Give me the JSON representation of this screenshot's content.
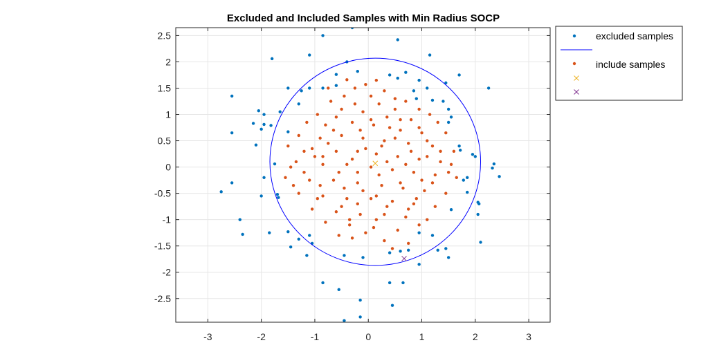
{
  "chart_data": {
    "type": "scatter",
    "title": "Excluded and Included Samples with Min Radius SOCP",
    "xlabel": "",
    "ylabel": "",
    "xlim": [
      -3.6,
      3.4
    ],
    "ylim": [
      -2.95,
      2.65
    ],
    "xticks": [
      -3,
      -2,
      -1,
      0,
      1,
      2,
      3
    ],
    "yticks": [
      2.5,
      2,
      1.5,
      1,
      0.5,
      0,
      -0.5,
      -1,
      -1.5,
      -2,
      -2.5
    ],
    "grid": true,
    "legend_position": "outside-top-right",
    "colors": {
      "excluded": "#0072BD",
      "circle": "#0000FF",
      "included": "#D95319",
      "center": "#EDB120",
      "boundary": "#7E2F8E",
      "grid": "#e6e6e6",
      "axes": "#262626"
    },
    "circle": {
      "center": [
        0.13,
        0.1
      ],
      "radius": 1.97
    },
    "center_marker": [
      0.13,
      0.07
    ],
    "boundary_marker": [
      0.67,
      -1.74
    ],
    "excluded_points": [
      [
        -0.3,
        2.65
      ],
      [
        -0.85,
        2.5
      ],
      [
        0.55,
        2.42
      ],
      [
        -1.1,
        2.13
      ],
      [
        1.15,
        2.13
      ],
      [
        -1.8,
        2.06
      ],
      [
        -0.4,
        2.0
      ],
      [
        -0.6,
        1.76
      ],
      [
        -0.2,
        1.82
      ],
      [
        0.4,
        1.75
      ],
      [
        0.55,
        1.69
      ],
      [
        0.7,
        1.8
      ],
      [
        0.95,
        1.65
      ],
      [
        1.7,
        1.75
      ],
      [
        1.45,
        1.6
      ],
      [
        -1.5,
        1.5
      ],
      [
        -1.1,
        1.5
      ],
      [
        -0.85,
        1.5
      ],
      [
        -1.25,
        1.45
      ],
      [
        -0.6,
        1.55
      ],
      [
        0.85,
        1.45
      ],
      [
        1.1,
        1.5
      ],
      [
        0.9,
        1.3
      ],
      [
        2.25,
        1.5
      ],
      [
        -2.55,
        1.35
      ],
      [
        -1.3,
        1.2
      ],
      [
        1.2,
        1.27
      ],
      [
        1.4,
        1.25
      ],
      [
        -2.05,
        1.07
      ],
      [
        -1.95,
        1.0
      ],
      [
        -1.65,
        1.05
      ],
      [
        -2.15,
        0.83
      ],
      [
        -1.95,
        0.81
      ],
      [
        -1.82,
        0.79
      ],
      [
        1.5,
        1.1
      ],
      [
        1.55,
        0.95
      ],
      [
        1.5,
        0.85
      ],
      [
        -2.55,
        0.65
      ],
      [
        -2.0,
        0.72
      ],
      [
        -1.5,
        0.67
      ],
      [
        -2.1,
        0.42
      ],
      [
        1.7,
        0.4
      ],
      [
        1.72,
        0.32
      ],
      [
        1.95,
        0.24
      ],
      [
        2.0,
        0.2
      ],
      [
        -1.75,
        0.06
      ],
      [
        2.35,
        0.06
      ],
      [
        2.32,
        -0.02
      ],
      [
        -1.95,
        -0.2
      ],
      [
        2.45,
        -0.18
      ],
      [
        -2.55,
        -0.3
      ],
      [
        1.78,
        -0.25
      ],
      [
        1.85,
        -0.2
      ],
      [
        -2.75,
        -0.47
      ],
      [
        -1.7,
        -0.52
      ],
      [
        -1.68,
        -0.58
      ],
      [
        -2.0,
        -0.55
      ],
      [
        1.85,
        -0.48
      ],
      [
        2.05,
        -0.67
      ],
      [
        2.07,
        -0.7
      ],
      [
        1.55,
        -0.81
      ],
      [
        2.05,
        -0.9
      ],
      [
        -2.4,
        -1.0
      ],
      [
        -1.85,
        -1.25
      ],
      [
        -2.35,
        -1.28
      ],
      [
        -1.5,
        -1.23
      ],
      [
        -1.1,
        -1.3
      ],
      [
        0.95,
        -1.25
      ],
      [
        1.2,
        -1.3
      ],
      [
        -1.3,
        -1.37
      ],
      [
        -1.05,
        -1.45
      ],
      [
        2.1,
        -1.43
      ],
      [
        -1.45,
        -1.52
      ],
      [
        0.6,
        -1.6
      ],
      [
        1.45,
        -1.55
      ],
      [
        1.3,
        -1.58
      ],
      [
        0.75,
        -1.58
      ],
      [
        0.4,
        -1.63
      ],
      [
        -1.15,
        -1.68
      ],
      [
        -0.45,
        -1.68
      ],
      [
        -0.1,
        -1.72
      ],
      [
        1.5,
        -1.72
      ],
      [
        0.95,
        -1.85
      ],
      [
        0.4,
        -2.2
      ],
      [
        0.65,
        -2.2
      ],
      [
        -0.85,
        -2.2
      ],
      [
        -0.55,
        -2.33
      ],
      [
        -0.15,
        -2.53
      ],
      [
        0.45,
        -2.63
      ],
      [
        -0.15,
        -2.85
      ],
      [
        -0.45,
        -2.92
      ]
    ],
    "included_points": [
      [
        -0.4,
        1.66
      ],
      [
        -0.25,
        1.5
      ],
      [
        -0.05,
        1.57
      ],
      [
        0.15,
        1.65
      ],
      [
        -0.75,
        1.5
      ],
      [
        0.3,
        1.45
      ],
      [
        0.5,
        1.3
      ],
      [
        -0.45,
        1.35
      ],
      [
        0.05,
        1.35
      ],
      [
        0.7,
        1.25
      ],
      [
        -0.7,
        1.25
      ],
      [
        0.95,
        1.1
      ],
      [
        1.15,
        1.0
      ],
      [
        -0.95,
        1.0
      ],
      [
        -0.25,
        1.2
      ],
      [
        0.2,
        1.2
      ],
      [
        0.5,
        1.1
      ],
      [
        -0.5,
        1.1
      ],
      [
        -0.1,
        1.05
      ],
      [
        0.35,
        0.95
      ],
      [
        0.8,
        0.9
      ],
      [
        1.3,
        0.85
      ],
      [
        -1.15,
        0.85
      ],
      [
        -0.8,
        0.8
      ],
      [
        -0.3,
        0.85
      ],
      [
        0.1,
        0.8
      ],
      [
        0.6,
        0.7
      ],
      [
        1.0,
        0.65
      ],
      [
        1.45,
        0.65
      ],
      [
        -1.3,
        0.6
      ],
      [
        -0.9,
        0.55
      ],
      [
        -0.5,
        0.6
      ],
      [
        -0.1,
        0.55
      ],
      [
        0.3,
        0.5
      ],
      [
        0.75,
        0.45
      ],
      [
        1.2,
        0.4
      ],
      [
        1.6,
        0.3
      ],
      [
        -1.5,
        0.4
      ],
      [
        -1.05,
        0.35
      ],
      [
        -0.6,
        0.3
      ],
      [
        -0.2,
        0.3
      ],
      [
        0.15,
        0.25
      ],
      [
        0.55,
        0.2
      ],
      [
        0.95,
        0.15
      ],
      [
        1.35,
        0.1
      ],
      [
        -1.35,
        0.1
      ],
      [
        -0.85,
        0.05
      ],
      [
        -0.4,
        0.05
      ],
      [
        0.05,
        0.0
      ],
      [
        0.45,
        -0.05
      ],
      [
        0.85,
        -0.1
      ],
      [
        1.25,
        -0.15
      ],
      [
        1.65,
        -0.2
      ],
      [
        -1.55,
        -0.2
      ],
      [
        -1.1,
        -0.25
      ],
      [
        -0.65,
        -0.25
      ],
      [
        -0.2,
        -0.3
      ],
      [
        0.25,
        -0.35
      ],
      [
        0.65,
        -0.4
      ],
      [
        1.05,
        -0.45
      ],
      [
        1.45,
        -0.5
      ],
      [
        -1.3,
        -0.5
      ],
      [
        -0.85,
        -0.55
      ],
      [
        -0.4,
        -0.6
      ],
      [
        0.05,
        -0.6
      ],
      [
        0.45,
        -0.65
      ],
      [
        0.85,
        -0.7
      ],
      [
        1.25,
        -0.75
      ],
      [
        -1.05,
        -0.8
      ],
      [
        -0.6,
        -0.85
      ],
      [
        -0.15,
        -0.9
      ],
      [
        0.3,
        -0.9
      ],
      [
        0.7,
        -0.95
      ],
      [
        1.1,
        -1.0
      ],
      [
        -0.8,
        -1.05
      ],
      [
        -0.35,
        -1.1
      ],
      [
        0.1,
        -1.15
      ],
      [
        0.55,
        -1.2
      ],
      [
        0.95,
        -1.1
      ],
      [
        -0.55,
        -1.3
      ],
      [
        0.3,
        -1.4
      ],
      [
        0.75,
        -1.45
      ],
      [
        -0.3,
        -1.35
      ],
      [
        0.45,
        -1.55
      ],
      [
        -0.05,
        -1.25
      ],
      [
        -0.6,
        0.95
      ],
      [
        -0.15,
        0.7
      ],
      [
        0.4,
        0.75
      ],
      [
        0.8,
        0.3
      ],
      [
        -0.45,
        -0.4
      ],
      [
        0.2,
        -0.15
      ],
      [
        -0.9,
        -0.35
      ],
      [
        0.6,
        -0.3
      ],
      [
        1.0,
        -0.25
      ],
      [
        -1.2,
        -0.1
      ],
      [
        -0.3,
        0.15
      ],
      [
        0.25,
        0.4
      ],
      [
        -0.75,
        0.45
      ],
      [
        1.1,
        0.5
      ],
      [
        0.9,
        -0.6
      ],
      [
        -0.5,
        -0.75
      ],
      [
        0.15,
        -0.55
      ],
      [
        -1.0,
        0.2
      ],
      [
        1.5,
        -0.1
      ],
      [
        -0.2,
        -0.1
      ],
      [
        0.7,
        0.05
      ],
      [
        -0.65,
        0.7
      ],
      [
        0.05,
        0.9
      ],
      [
        0.6,
        0.9
      ],
      [
        -1.2,
        0.3
      ],
      [
        1.35,
        0.3
      ],
      [
        -1.4,
        -0.35
      ],
      [
        1.2,
        -0.3
      ],
      [
        -0.95,
        -0.6
      ],
      [
        0.35,
        -0.75
      ],
      [
        -0.2,
        -0.7
      ],
      [
        0.95,
        0.75
      ],
      [
        -0.05,
        0.35
      ],
      [
        0.35,
        0.1
      ],
      [
        -0.55,
        -0.1
      ],
      [
        0.75,
        -0.8
      ],
      [
        -0.35,
        -1.0
      ],
      [
        0.15,
        -1.0
      ],
      [
        1.1,
        0.2
      ],
      [
        -0.85,
        0.2
      ],
      [
        -1.45,
        0.0
      ],
      [
        1.55,
        0.05
      ],
      [
        -0.1,
        -0.45
      ],
      [
        0.5,
        0.55
      ]
    ],
    "series": [
      {
        "name": "excluded samples"
      },
      {
        "name": ""
      },
      {
        "name": "include samples"
      },
      {
        "name": ""
      },
      {
        "name": ""
      }
    ]
  }
}
